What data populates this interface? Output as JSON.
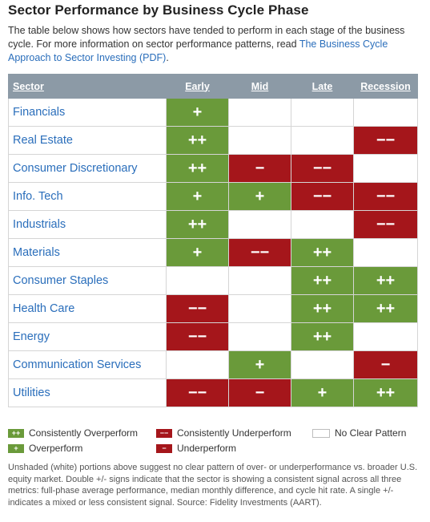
{
  "title": "Sector Performance by Business Cycle Phase",
  "intro": {
    "text": "The table below shows how sectors have tended to perform in each stage of the business cycle. For more information on sector performance patterns, read ",
    "link": "The Business Cycle Approach to Sector Investing (PDF)",
    "after": "."
  },
  "table": {
    "headers": [
      "Sector",
      "Early",
      "Mid",
      "Late",
      "Recession"
    ],
    "rows": [
      {
        "sector": "Financials",
        "early": "+",
        "mid": "",
        "late": "",
        "recession": ""
      },
      {
        "sector": "Real Estate",
        "early": "++",
        "mid": "",
        "late": "",
        "recession": "−−"
      },
      {
        "sector": "Consumer Discretionary",
        "early": "++",
        "mid": "−",
        "late": "−−",
        "recession": ""
      },
      {
        "sector": "Info. Tech",
        "early": "+",
        "mid": "+",
        "late": "−−",
        "recession": "−−"
      },
      {
        "sector": "Industrials",
        "early": "++",
        "mid": "",
        "late": "",
        "recession": "−−"
      },
      {
        "sector": "Materials",
        "early": "+",
        "mid": "−−",
        "late": "++",
        "recession": ""
      },
      {
        "sector": "Consumer Staples",
        "early": "",
        "mid": "",
        "late": "++",
        "recession": "++"
      },
      {
        "sector": "Health Care",
        "early": "−−",
        "mid": "",
        "late": "++",
        "recession": "++"
      },
      {
        "sector": "Energy",
        "early": "−−",
        "mid": "",
        "late": "++",
        "recession": ""
      },
      {
        "sector": "Communication Services",
        "early": "",
        "mid": "+",
        "late": "",
        "recession": "−"
      },
      {
        "sector": "Utilities",
        "early": "−−",
        "mid": "−",
        "late": "+",
        "recession": "++"
      }
    ]
  },
  "legend": {
    "consistently_overperform": {
      "symbol": "++",
      "label": "Consistently Overperform"
    },
    "overperform": {
      "symbol": "+",
      "label": "Overperform"
    },
    "consistently_underperform": {
      "symbol": "−−",
      "label": "Consistently Underperform"
    },
    "underperform": {
      "symbol": "−",
      "label": "Underperform"
    },
    "no_clear_pattern": {
      "label": "No Clear Pattern"
    }
  },
  "footnote": "Unshaded (white) portions above suggest no clear pattern of over- or underperformance vs. broader U.S. equity market. Double +/- signs indicate that the sector is showing a consistent signal across all three metrics: full-phase average performance, median monthly difference, and cycle hit rate. A single +/- indicates a mixed or less consistent signal. Source: Fidelity Investments (AART).",
  "colors": {
    "positive": "#6a9a3a",
    "negative": "#a5161b",
    "header": "#8c9aa6",
    "link": "#2a6ebb"
  }
}
